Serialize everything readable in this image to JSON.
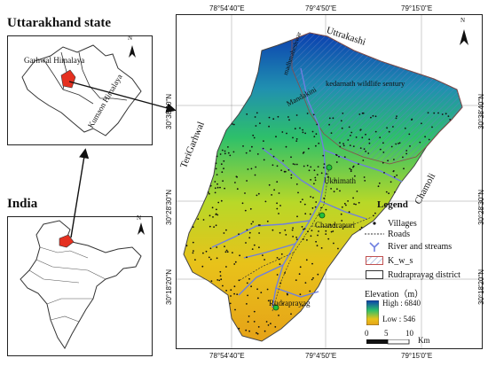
{
  "titles": {
    "state": "Uttarakhand state",
    "country": "India"
  },
  "inset_state": {
    "labels": {
      "garhwal": "Garhwal Himalaya",
      "kumaon": "Kumaon Himalaya"
    },
    "north": "N"
  },
  "inset_india": {
    "north": "N"
  },
  "main_map": {
    "top_coords": [
      "78°54'40\"E",
      "79°4'50\"E",
      "79°15'0\"E"
    ],
    "bottom_coords": [
      "78°54'40\"E",
      "79°4'50\"E",
      "79°15'0\"E"
    ],
    "left_coords": [
      "30°38'40\"N",
      "30°28'30\"N",
      "30°18'20\"N"
    ],
    "right_coords": [
      "30°38'40\"N",
      "30°28'30\"N",
      "30°18'20\"N"
    ],
    "region_labels": {
      "uttarkashi": "Uttrakashi",
      "terigarhwal": "TeriGarhwal",
      "chamoli": "Chamoli",
      "sanctuary": "kedarnath wildlife sentury",
      "mandakini": "Mandakini",
      "madhmaheshwar": "madhmaheshwar"
    },
    "towns": [
      "Ukhimath",
      "Chandrapuri",
      "Rudraprayag"
    ],
    "north": "N"
  },
  "legend": {
    "title": "Legend",
    "items": [
      "Villages",
      "Roads",
      "River and streams",
      "K_w_s",
      "Rudraprayag district"
    ],
    "elevation_title": "Elevation（m）",
    "high": "High : 6840",
    "low": "Low : 546",
    "scale_ticks": [
      "0",
      "5",
      "10"
    ],
    "scale_unit": "Km"
  },
  "colors": {
    "elev_high": "#0b3fb0",
    "elev_mid": "#2ec06a",
    "elev_low": "#e8c21a",
    "river": "#6f7fe0",
    "accent_red": "#e53020",
    "town_marker": "#22c03a"
  }
}
